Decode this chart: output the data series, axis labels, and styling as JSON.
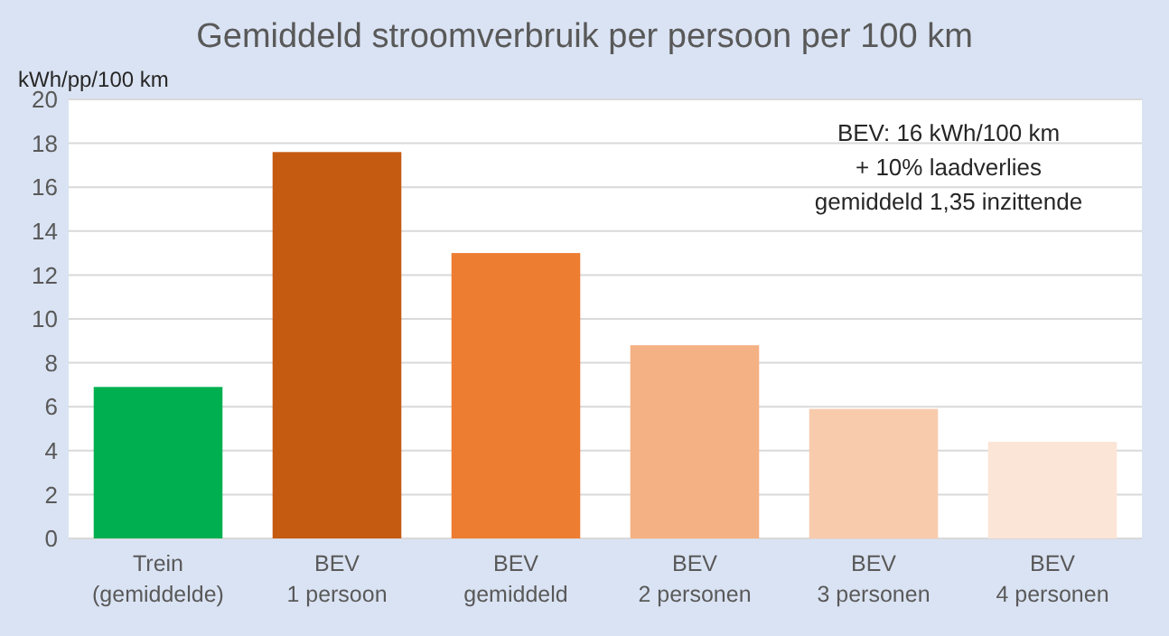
{
  "chart_data": {
    "type": "bar",
    "title": "Gemiddeld stroomverbruik per persoon per 100 km",
    "ylabel": "kWh/pp/100 km",
    "categories": [
      "Trein\n(gemiddelde)",
      "BEV\n1 persoon",
      "BEV\ngemiddeld",
      "BEV\n2 personen",
      "BEV\n3 personen",
      "BEV\n4 personen"
    ],
    "values": [
      6.9,
      17.6,
      13.0,
      8.8,
      5.9,
      4.4
    ],
    "colors": [
      "#00b050",
      "#c55a11",
      "#ed7d31",
      "#f4b183",
      "#f8cbad",
      "#fbe5d6"
    ],
    "ylim": [
      0,
      20
    ],
    "yticks": [
      0,
      2,
      4,
      6,
      8,
      10,
      12,
      14,
      16,
      18,
      20
    ],
    "grid": "y",
    "annotations": [
      "BEV: 16 kWh/100 km",
      "+ 10% laadverlies",
      "gemiddeld 1,35 inzittende"
    ]
  }
}
